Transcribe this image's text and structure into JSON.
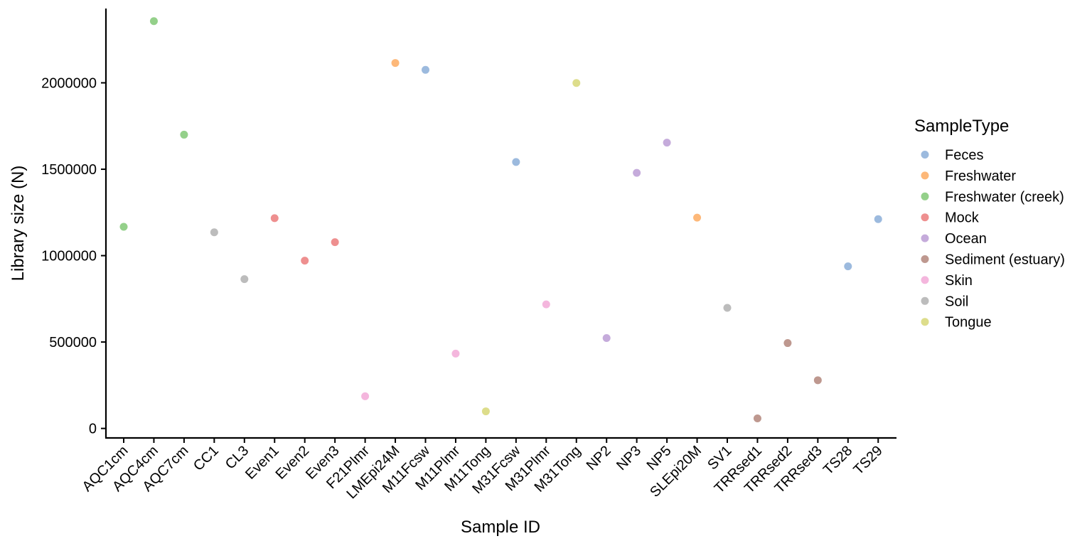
{
  "chart_data": {
    "type": "scatter",
    "xlabel": "Sample ID",
    "ylabel": "Library size (N)",
    "ylim": [
      -55000,
      2430000
    ],
    "yticks": [
      0,
      500000,
      1000000,
      1500000,
      2000000
    ],
    "ytick_labels": [
      "0",
      "500000",
      "1000000",
      "1500000",
      "2000000"
    ],
    "categories": [
      "AQC1cm",
      "AQC4cm",
      "AQC7cm",
      "CC1",
      "CL3",
      "Even1",
      "Even2",
      "Even3",
      "F21Plmr",
      "LMEpi24M",
      "M11Fcsw",
      "M11Plmr",
      "M11Tong",
      "M31Fcsw",
      "M31Plmr",
      "M31Tong",
      "NP2",
      "NP3",
      "NP5",
      "SLEpi20M",
      "SV1",
      "TRRsed1",
      "TRRsed2",
      "TRRsed3",
      "TS28",
      "TS29"
    ],
    "points": [
      {
        "x": "AQC1cm",
        "y": 1167000,
        "type": "Freshwater (creek)"
      },
      {
        "x": "AQC4cm",
        "y": 2357000,
        "type": "Freshwater (creek)"
      },
      {
        "x": "AQC7cm",
        "y": 1700000,
        "type": "Freshwater (creek)"
      },
      {
        "x": "CC1",
        "y": 1135000,
        "type": "Soil"
      },
      {
        "x": "CL3",
        "y": 864000,
        "type": "Soil"
      },
      {
        "x": "Even1",
        "y": 1217000,
        "type": "Mock"
      },
      {
        "x": "Even2",
        "y": 971000,
        "type": "Mock"
      },
      {
        "x": "Even3",
        "y": 1078000,
        "type": "Mock"
      },
      {
        "x": "F21Plmr",
        "y": 186000,
        "type": "Skin"
      },
      {
        "x": "LMEpi24M",
        "y": 2115000,
        "type": "Freshwater"
      },
      {
        "x": "M11Fcsw",
        "y": 2075000,
        "type": "Feces"
      },
      {
        "x": "M11Plmr",
        "y": 433000,
        "type": "Skin"
      },
      {
        "x": "M11Tong",
        "y": 99000,
        "type": "Tongue"
      },
      {
        "x": "M31Fcsw",
        "y": 1542000,
        "type": "Feces"
      },
      {
        "x": "M31Plmr",
        "y": 718000,
        "type": "Skin"
      },
      {
        "x": "M31Tong",
        "y": 1999000,
        "type": "Tongue"
      },
      {
        "x": "NP2",
        "y": 523000,
        "type": "Ocean"
      },
      {
        "x": "NP3",
        "y": 1479000,
        "type": "Ocean"
      },
      {
        "x": "NP5",
        "y": 1654000,
        "type": "Ocean"
      },
      {
        "x": "SLEpi20M",
        "y": 1220000,
        "type": "Freshwater"
      },
      {
        "x": "SV1",
        "y": 698000,
        "type": "Soil"
      },
      {
        "x": "TRRsed1",
        "y": 58000,
        "type": "Sediment (estuary)"
      },
      {
        "x": "TRRsed2",
        "y": 494000,
        "type": "Sediment (estuary)"
      },
      {
        "x": "TRRsed3",
        "y": 279000,
        "type": "Sediment (estuary)"
      },
      {
        "x": "TS28",
        "y": 938000,
        "type": "Feces"
      },
      {
        "x": "TS29",
        "y": 1211000,
        "type": "Feces"
      }
    ],
    "legend": {
      "title": "SampleType",
      "placement": "right",
      "entries": [
        {
          "label": "Feces",
          "color": "#7ba3d3"
        },
        {
          "label": "Freshwater",
          "color": "#fca04c"
        },
        {
          "label": "Freshwater (creek)",
          "color": "#70c063"
        },
        {
          "label": "Mock",
          "color": "#e86a6a"
        },
        {
          "label": "Ocean",
          "color": "#b28fcf"
        },
        {
          "label": "Sediment (estuary)",
          "color": "#a8766a"
        },
        {
          "label": "Skin",
          "color": "#f09ed1"
        },
        {
          "label": "Soil",
          "color": "#a5a5a5"
        },
        {
          "label": "Tongue",
          "color": "#d2d264"
        }
      ]
    },
    "grid": false
  }
}
